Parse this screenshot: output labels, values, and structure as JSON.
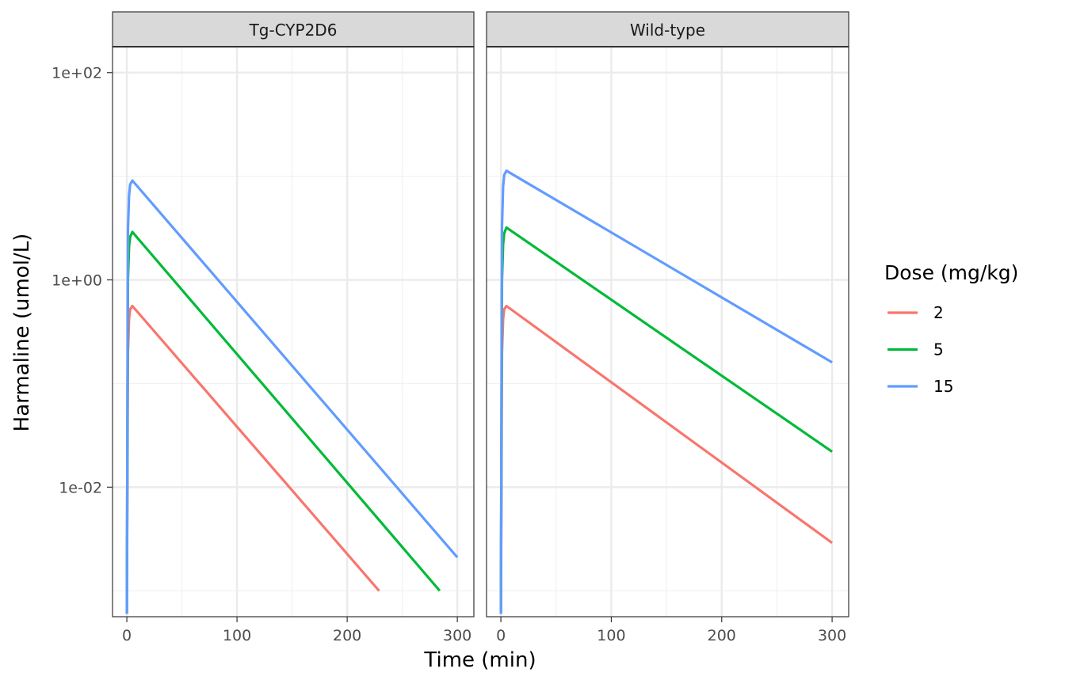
{
  "chart_data": {
    "type": "line",
    "scale_y": "log10",
    "grid": true,
    "legend_position": "right",
    "xlabel": "Time (min)",
    "ylabel": "Harmaline (umol/L)",
    "x_ticks": [
      "0",
      "100",
      "200",
      "300"
    ],
    "y_ticks": [
      "1e-02",
      "1e+00",
      "1e+02"
    ],
    "xlim": [
      -13,
      315
    ],
    "ylim_log10": [
      -3.25,
      2.25
    ],
    "legend": {
      "title": "Dose (mg/kg)",
      "entries": [
        {
          "label": "2",
          "color": "#F8766D"
        },
        {
          "label": "5",
          "color": "#00BA38"
        },
        {
          "label": "15",
          "color": "#619CFF"
        }
      ]
    },
    "panels": [
      {
        "strip": "Tg-CYP2D6",
        "series": [
          {
            "name": "2",
            "color": "#F8766D",
            "x": [
              0,
              1,
              2,
              3,
              5,
              229
            ],
            "y": [
              0.0006,
              0.2,
              0.42,
              0.52,
              0.56,
              0.001
            ]
          },
          {
            "name": "5",
            "color": "#00BA38",
            "x": [
              0,
              1,
              2,
              3,
              5,
              284
            ],
            "y": [
              0.0006,
              1.0,
              2.1,
              2.6,
              2.9,
              0.001
            ]
          },
          {
            "name": "15",
            "color": "#619CFF",
            "x": [
              0,
              1,
              2,
              3,
              5,
              300
            ],
            "y": [
              0.0006,
              3.0,
              6.5,
              8.3,
              9.1,
              0.0021
            ]
          }
        ]
      },
      {
        "strip": "Wild-type",
        "series": [
          {
            "name": "2",
            "color": "#F8766D",
            "x": [
              0,
              1,
              2,
              3,
              5,
              300
            ],
            "y": [
              0.0006,
              0.2,
              0.42,
              0.52,
              0.56,
              0.0029
            ]
          },
          {
            "name": "5",
            "color": "#00BA38",
            "x": [
              0,
              1,
              2,
              3,
              5,
              300
            ],
            "y": [
              0.0006,
              1.0,
              2.2,
              2.8,
              3.2,
              0.022
            ]
          },
          {
            "name": "15",
            "color": "#619CFF",
            "x": [
              0,
              1,
              2,
              3,
              5,
              300
            ],
            "y": [
              0.0006,
              3.3,
              8.0,
              10.3,
              11.3,
              0.16
            ]
          }
        ]
      }
    ]
  }
}
